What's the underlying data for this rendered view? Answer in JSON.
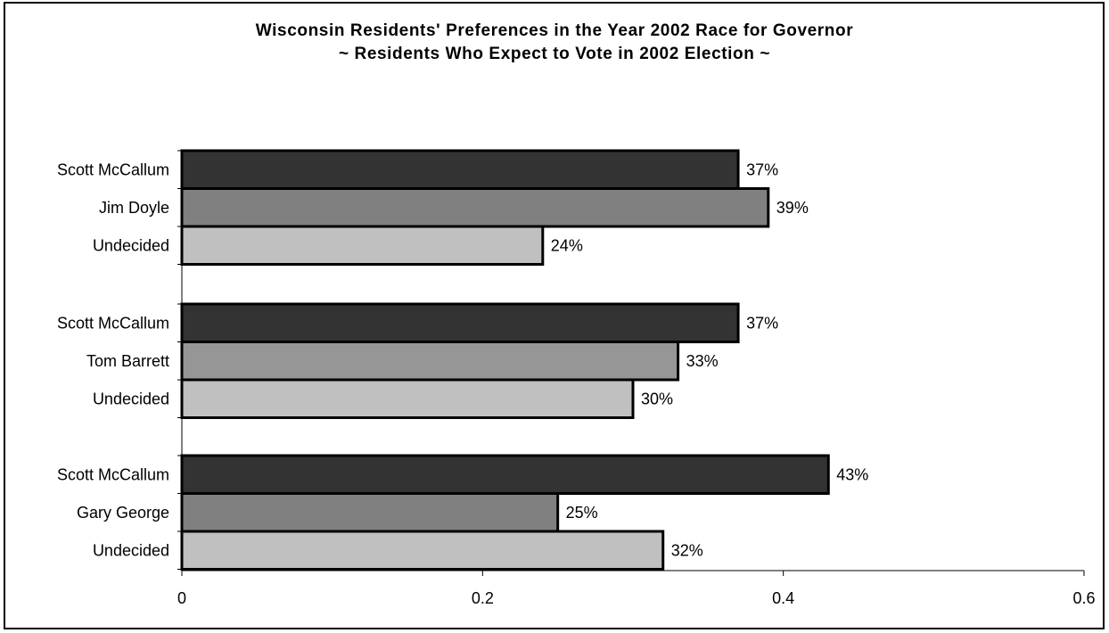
{
  "chart": {
    "title_line1": "Wisconsin Residents' Preferences in the Year 2002 Race for Governor",
    "title_line2": "~ Residents Who Expect to Vote in 2002 Election ~"
  },
  "chart_data": {
    "type": "bar",
    "orientation": "horizontal",
    "title": "Wisconsin Residents' Preferences in the Year 2002 Race for Governor ~ Residents Who Expect to Vote in 2002 Election ~",
    "xlabel": "",
    "ylabel": "",
    "xlim": [
      0,
      0.6
    ],
    "xticks": [
      0,
      0.2,
      0.4,
      0.6
    ],
    "tick_labels": [
      "0",
      "0.2",
      "0.4",
      "0.6"
    ],
    "grid": false,
    "legend": "none",
    "groups": [
      {
        "bars": [
          {
            "label": "Scott McCallum",
            "value": 0.37,
            "value_label": "37%",
            "color": "#333333"
          },
          {
            "label": "Jim Doyle",
            "value": 0.39,
            "value_label": "39%",
            "color": "#808080"
          },
          {
            "label": "Undecided",
            "value": 0.24,
            "value_label": "24%",
            "color": "#c0c0c0"
          }
        ]
      },
      {
        "bars": [
          {
            "label": "Scott McCallum",
            "value": 0.37,
            "value_label": "37%",
            "color": "#333333"
          },
          {
            "label": "Tom Barrett",
            "value": 0.33,
            "value_label": "33%",
            "color": "#969696"
          },
          {
            "label": "Undecided",
            "value": 0.3,
            "value_label": "30%",
            "color": "#c0c0c0"
          }
        ]
      },
      {
        "bars": [
          {
            "label": "Scott McCallum",
            "value": 0.43,
            "value_label": "43%",
            "color": "#333333"
          },
          {
            "label": "Gary George",
            "value": 0.25,
            "value_label": "25%",
            "color": "#808080"
          },
          {
            "label": "Undecided",
            "value": 0.32,
            "value_label": "32%",
            "color": "#c0c0c0"
          }
        ]
      }
    ]
  }
}
